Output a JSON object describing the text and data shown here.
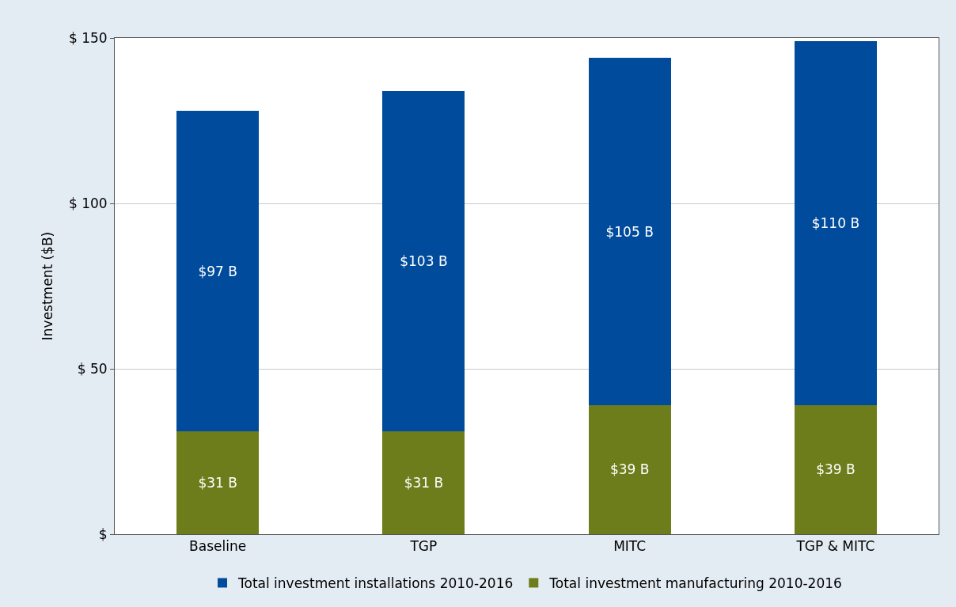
{
  "chart_data": {
    "type": "bar",
    "stacked": true,
    "ylabel": "Investment ($B)",
    "categories": [
      "Baseline",
      "TGP",
      "MITC",
      "TGP & MITC"
    ],
    "series": [
      {
        "name": "Total investment manufacturing 2010-2016",
        "color": "#6e7d1b",
        "values": [
          31,
          31,
          39,
          39
        ],
        "value_labels": [
          "$31 B",
          "$31 B",
          "$39 B",
          "$39 B"
        ]
      },
      {
        "name": "Total investment installations 2010-2016",
        "color": "#004b9c",
        "values": [
          97,
          103,
          105,
          110
        ],
        "value_labels": [
          "$97 B",
          "$103 B",
          "$105 B",
          "$110 B"
        ]
      }
    ],
    "ylim": [
      0,
      150
    ],
    "yticks": [
      {
        "value": 0,
        "label": "$"
      },
      {
        "value": 50,
        "label": "$ 50"
      },
      {
        "value": 100,
        "label": "$ 100"
      },
      {
        "value": 150,
        "label": "$ 150"
      }
    ],
    "grid": "y",
    "legend": "bottom"
  }
}
